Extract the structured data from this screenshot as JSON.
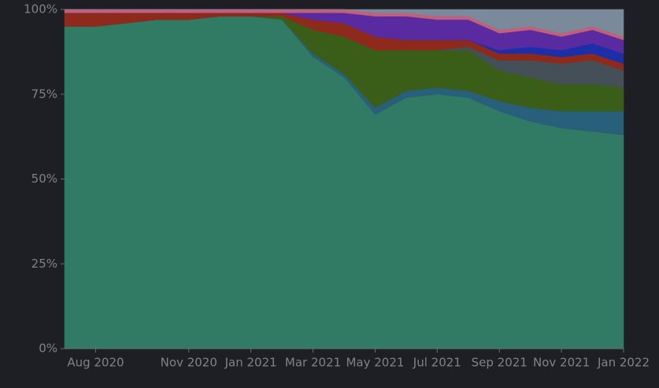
{
  "chart_data": {
    "type": "area",
    "stacked": true,
    "x": [
      "2020-07",
      "2020-08",
      "2020-09",
      "2020-10",
      "2020-11",
      "2020-12",
      "2021-01",
      "2021-02",
      "2021-03",
      "2021-04",
      "2021-05",
      "2021-06",
      "2021-07",
      "2021-08",
      "2021-09",
      "2021-10",
      "2021-11",
      "2021-12",
      "2022-01"
    ],
    "xlim": [
      "2020-07",
      "2022-01"
    ],
    "xticks": [
      {
        "value": "2020-08",
        "label": "Aug 2020"
      },
      {
        "value": "2020-11",
        "label": "Nov 2020"
      },
      {
        "value": "2021-01",
        "label": "Jan 2021"
      },
      {
        "value": "2021-03",
        "label": "Mar 2021"
      },
      {
        "value": "2021-05",
        "label": "May 2021"
      },
      {
        "value": "2021-07",
        "label": "Jul 2021"
      },
      {
        "value": "2021-09",
        "label": "Sep 2021"
      },
      {
        "value": "2021-11",
        "label": "Nov 2021"
      },
      {
        "value": "2022-01",
        "label": "Jan 2022"
      }
    ],
    "ylim": [
      0,
      100
    ],
    "yticks": [
      {
        "value": 0,
        "label": "0%"
      },
      {
        "value": 25,
        "label": "25%"
      },
      {
        "value": 50,
        "label": "50%"
      },
      {
        "value": 75,
        "label": "75%"
      },
      {
        "value": 100,
        "label": "100%"
      }
    ],
    "series": [
      {
        "color": "#317a63",
        "values": [
          95,
          95,
          96,
          97,
          97,
          98,
          98,
          97,
          86,
          80,
          69,
          74,
          75,
          74,
          70,
          67,
          65,
          64,
          63
        ]
      },
      {
        "color": "#285f7a",
        "values": [
          0,
          0,
          0,
          0,
          0,
          0,
          0,
          0,
          1,
          1,
          2,
          2,
          2,
          2,
          3,
          4,
          5,
          6,
          7
        ]
      },
      {
        "color": "#3a5e17",
        "values": [
          0,
          0,
          0,
          0,
          0,
          0,
          0,
          1,
          7,
          11,
          17,
          12,
          11,
          12,
          9,
          9,
          8,
          8,
          7
        ]
      },
      {
        "color": "#454f57",
        "values": [
          0,
          0,
          0,
          0,
          0,
          0,
          0,
          0,
          0,
          0,
          0,
          0,
          0,
          1,
          3,
          5,
          6,
          7,
          5
        ]
      },
      {
        "color": "#8e2a1c",
        "values": [
          4,
          4,
          3,
          2,
          2,
          1,
          1,
          1,
          3,
          4,
          4,
          3,
          3,
          2,
          2,
          2,
          2,
          2,
          2
        ]
      },
      {
        "color": "#1d2fa8",
        "values": [
          0,
          0,
          0,
          0,
          0,
          0,
          0,
          0,
          0,
          0,
          0,
          0,
          0,
          0,
          1,
          2,
          2,
          3,
          3
        ]
      },
      {
        "color": "#5a2aa0",
        "values": [
          0,
          0,
          0,
          0,
          0,
          0,
          0,
          0,
          2,
          3,
          6,
          7,
          6,
          6,
          5,
          5,
          4,
          4,
          4
        ]
      },
      {
        "color": "#c0607a",
        "values": [
          1,
          1,
          1,
          1,
          1,
          1,
          1,
          1,
          1,
          1,
          1,
          1,
          1,
          1,
          1,
          1,
          1,
          1,
          1
        ]
      },
      {
        "color": "#7a8a9a",
        "values": [
          0,
          0,
          0,
          0,
          0,
          0,
          0,
          0,
          0,
          0,
          1,
          1,
          2,
          2,
          6,
          5,
          7,
          5,
          8
        ]
      }
    ]
  }
}
